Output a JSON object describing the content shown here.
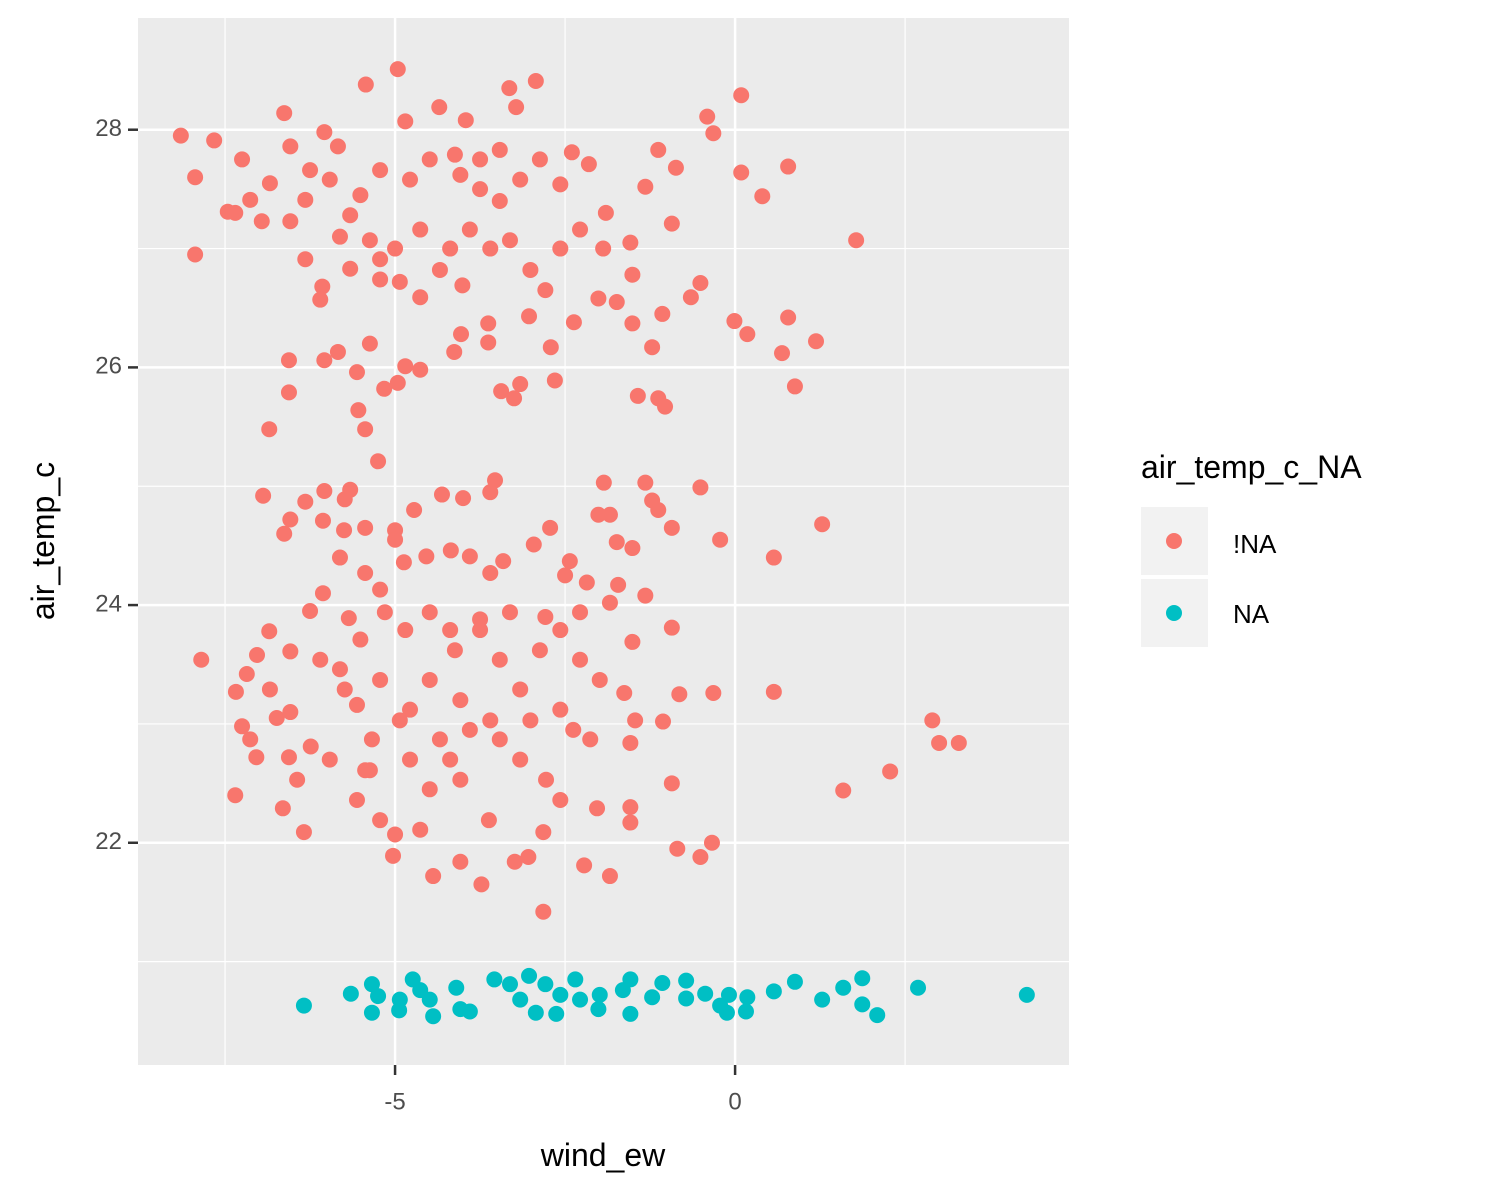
{
  "chart_data": {
    "type": "scatter",
    "x_label": "wind_ew",
    "y_label": "air_temp_c",
    "legend_title": "air_temp_c_NA",
    "xlim": [
      -8.78,
      4.91
    ],
    "ylim": [
      20.13,
      28.94
    ],
    "xticks": [
      -5,
      0
    ],
    "yticks": [
      22,
      24,
      26,
      28
    ],
    "x_minor_ticks": [
      -7.5,
      -2.5,
      2.5
    ],
    "y_minor_ticks": [
      21,
      23,
      25,
      27
    ],
    "grid": true,
    "legend": "right",
    "series": [
      {
        "name": "!NA",
        "color": "#F8766D",
        "x": [
          -8.15,
          -7.66,
          -7.94,
          -7.25,
          -7.46,
          -6.96,
          -6.63,
          -6.54,
          -6.04,
          -5.84,
          -5.43,
          -4.96,
          -4.85,
          -4.35,
          -3.96,
          -3.32,
          -2.93,
          -3.22,
          0.09,
          -0.41,
          -0.32,
          0.09,
          0.78,
          0.4,
          1.78,
          -7.94,
          -0.93,
          -1.32,
          -1.13,
          -0.87,
          -2.4,
          -2.15,
          -1.9,
          -1.54,
          -1.94,
          -1.51,
          -0.51,
          -0.65,
          -0.01,
          0.18,
          0.78,
          1.19,
          0.69,
          0.88,
          -1.07,
          -1.22,
          -1.43,
          -1.13,
          -1.03,
          -1.51,
          -2.01,
          -1.74,
          -2.37,
          -2.71,
          -3.03,
          -2.65,
          -3.16,
          -3.44,
          -3.25,
          -3.63,
          -3.63,
          -4.03,
          -4.13,
          -4.63,
          -4.85,
          -5.16,
          -4.96,
          -5.37,
          -5.56,
          -5.54,
          -5.44,
          -5.25,
          -6.56,
          -6.85,
          -6.56,
          -6.04,
          -5.84,
          -6.07,
          -6.32,
          -6.54,
          -6.84,
          -6.32,
          -5.81,
          -5.66,
          -5.37,
          -5.22,
          -4.93,
          -4.63,
          -4.34,
          -4.01,
          -4.19,
          -3.9,
          -3.6,
          -3.31,
          -3.01,
          -2.79,
          -3.46,
          -3.75,
          -4.04,
          -4.49,
          -4.78,
          -5.22,
          -5.51,
          -5.96,
          -6.25,
          -3.16,
          -2.87,
          -2.57,
          -2.28,
          -2.57,
          -3.46,
          -3.75,
          -4.12,
          -4.63,
          -5.0,
          -5.22,
          -5.66,
          -6.1,
          -7.13,
          -7.35,
          -7.85,
          -7.35,
          -7.25,
          -7.13,
          -7.04,
          -7.34,
          -7.18,
          -7.03,
          -6.85,
          -6.94,
          -6.63,
          -6.54,
          -6.04,
          -5.66,
          -5.74,
          -6.32,
          -6.06,
          -5.75,
          -5.44,
          -5.81,
          -6.06,
          -5.44,
          -5.0,
          -4.72,
          -4.31,
          -4.0,
          -3.53,
          -3.6,
          -1.93,
          -1.32,
          -1.22,
          -1.13,
          -0.51,
          -0.22,
          0.57,
          1.28,
          -0.93,
          -2.01,
          -1.84,
          -2.72,
          -2.96,
          -1.74,
          -1.51,
          -1.32,
          -1.72,
          -2.18,
          -2.5,
          -2.43,
          -3.41,
          -3.6,
          -3.9,
          -4.18,
          -4.54,
          -4.87,
          -5.0,
          -5.22,
          -5.68,
          -6.25,
          -6.54,
          -6.84,
          -6.74,
          -6.54,
          -6.56,
          -6.24,
          -6.65,
          -6.34,
          -6.44,
          -5.96,
          -5.74,
          -5.56,
          -5.34,
          -5.56,
          -5.37,
          -5.03,
          -5.22,
          -5.0,
          -4.63,
          -4.44,
          -4.04,
          -3.73,
          -3.62,
          -3.24,
          -3.04,
          -2.82,
          -2.82,
          -2.22,
          -1.84,
          -2.03,
          -1.54,
          -1.54,
          -0.85,
          -0.51,
          -0.34,
          -0.93,
          -1.54,
          -2.13,
          -2.38,
          -2.57,
          -2.78,
          -3.16,
          -3.46,
          -3.9,
          -4.19,
          -4.49,
          -4.78,
          -4.78,
          -4.49,
          -4.12,
          -3.75,
          -3.46,
          -3.16,
          -2.87,
          -2.57,
          -2.28,
          -1.99,
          -1.63,
          -1.47,
          -1.06,
          -0.82,
          -0.32,
          0.57,
          -0.93,
          -1.51,
          -1.84,
          -2.28,
          -2.79,
          -3.31,
          -3.75,
          -4.19,
          -4.49,
          -4.85,
          -5.15,
          -5.51,
          -5.81,
          -6.1,
          -5.22,
          -4.93,
          -4.34,
          -4.04,
          -3.6,
          -3.01,
          -2.57,
          2.9,
          3.0,
          3.29,
          2.28,
          1.59,
          -5.44,
          -4.04
        ],
        "values": [
          27.95,
          27.91,
          27.6,
          27.75,
          27.31,
          27.23,
          28.14,
          27.86,
          27.98,
          27.86,
          28.38,
          28.51,
          28.07,
          28.19,
          28.08,
          28.35,
          28.41,
          28.19,
          28.29,
          28.11,
          27.97,
          27.64,
          27.69,
          27.44,
          27.07,
          26.95,
          27.21,
          27.52,
          27.83,
          27.68,
          27.81,
          27.71,
          27.3,
          27.05,
          27.0,
          26.78,
          26.71,
          26.59,
          26.39,
          26.28,
          26.42,
          26.22,
          26.12,
          25.84,
          26.45,
          26.17,
          25.76,
          25.74,
          25.67,
          26.37,
          26.58,
          26.55,
          26.38,
          26.17,
          26.43,
          25.89,
          25.86,
          25.8,
          25.74,
          26.21,
          26.37,
          26.28,
          26.13,
          25.98,
          26.01,
          25.82,
          25.87,
          26.2,
          25.96,
          25.64,
          25.48,
          25.21,
          25.79,
          25.48,
          26.06,
          26.06,
          26.13,
          26.68,
          26.91,
          27.23,
          27.55,
          27.41,
          27.1,
          27.28,
          27.07,
          26.91,
          26.72,
          26.59,
          26.82,
          26.69,
          27.0,
          27.16,
          27.0,
          27.07,
          26.82,
          26.65,
          27.4,
          27.5,
          27.62,
          27.75,
          27.58,
          27.66,
          27.45,
          27.58,
          27.66,
          27.58,
          27.75,
          27.54,
          27.16,
          27.0,
          27.83,
          27.75,
          27.79,
          27.16,
          27.0,
          26.74,
          26.83,
          26.57,
          27.41,
          27.3,
          23.54,
          22.4,
          22.98,
          22.87,
          22.72,
          23.27,
          23.42,
          23.58,
          23.78,
          24.92,
          24.6,
          24.72,
          24.96,
          24.97,
          24.89,
          24.87,
          24.71,
          24.63,
          24.65,
          24.4,
          24.1,
          24.27,
          24.63,
          24.8,
          24.93,
          24.9,
          25.05,
          24.95,
          25.03,
          25.03,
          24.88,
          24.8,
          24.99,
          24.55,
          24.4,
          24.68,
          24.65,
          24.76,
          24.76,
          24.65,
          24.51,
          24.53,
          24.48,
          24.08,
          24.17,
          24.19,
          24.25,
          24.37,
          24.37,
          24.27,
          24.41,
          24.46,
          24.41,
          24.36,
          24.55,
          24.13,
          23.89,
          23.95,
          23.61,
          23.29,
          23.05,
          23.1,
          22.72,
          22.81,
          22.29,
          22.09,
          22.53,
          22.7,
          23.29,
          23.16,
          22.87,
          22.36,
          22.61,
          21.89,
          22.19,
          22.07,
          22.11,
          21.72,
          21.84,
          21.65,
          22.19,
          21.84,
          21.88,
          21.42,
          22.09,
          21.81,
          21.72,
          22.29,
          22.17,
          22.3,
          21.95,
          21.88,
          22.0,
          22.5,
          22.84,
          22.87,
          22.95,
          22.36,
          22.53,
          22.7,
          22.87,
          22.95,
          22.7,
          22.45,
          22.7,
          23.12,
          23.37,
          23.62,
          23.79,
          23.54,
          23.29,
          23.62,
          23.79,
          23.54,
          23.37,
          23.26,
          23.03,
          23.02,
          23.25,
          23.26,
          23.27,
          23.81,
          23.69,
          24.02,
          23.94,
          23.9,
          23.94,
          23.88,
          23.79,
          23.94,
          23.79,
          23.94,
          23.71,
          23.46,
          23.54,
          23.37,
          23.03,
          22.87,
          23.2,
          23.03,
          23.03,
          23.12,
          23.03,
          22.84,
          22.84,
          22.6,
          22.44,
          22.61,
          22.53
        ]
      },
      {
        "name": "NA",
        "color": "#00BFC4",
        "x": [
          -6.34,
          -5.65,
          -5.34,
          -5.34,
          -5.25,
          -4.94,
          -4.74,
          -4.63,
          -4.44,
          -4.49,
          -4.1,
          -4.04,
          -3.9,
          -3.54,
          -3.31,
          -3.16,
          -3.03,
          -2.93,
          -2.79,
          -2.63,
          -2.35,
          -2.28,
          -2.01,
          -1.99,
          -1.65,
          -1.54,
          -1.54,
          -1.22,
          -1.07,
          -0.72,
          -0.72,
          -0.44,
          -0.22,
          -0.12,
          -0.09,
          0.16,
          0.18,
          0.57,
          0.88,
          1.28,
          1.59,
          1.87,
          1.87,
          2.09,
          2.69,
          4.29,
          -4.93,
          -2.57
        ],
        "values": [
          20.63,
          20.73,
          20.81,
          20.57,
          20.71,
          20.59,
          20.85,
          20.76,
          20.54,
          20.68,
          20.78,
          20.6,
          20.58,
          20.85,
          20.81,
          20.68,
          20.88,
          20.57,
          20.81,
          20.56,
          20.85,
          20.68,
          20.6,
          20.72,
          20.76,
          20.56,
          20.85,
          20.7,
          20.82,
          20.84,
          20.69,
          20.73,
          20.63,
          20.57,
          20.72,
          20.58,
          20.7,
          20.75,
          20.83,
          20.68,
          20.78,
          20.86,
          20.64,
          20.55,
          20.78,
          20.72,
          20.68,
          20.72
        ]
      }
    ]
  }
}
